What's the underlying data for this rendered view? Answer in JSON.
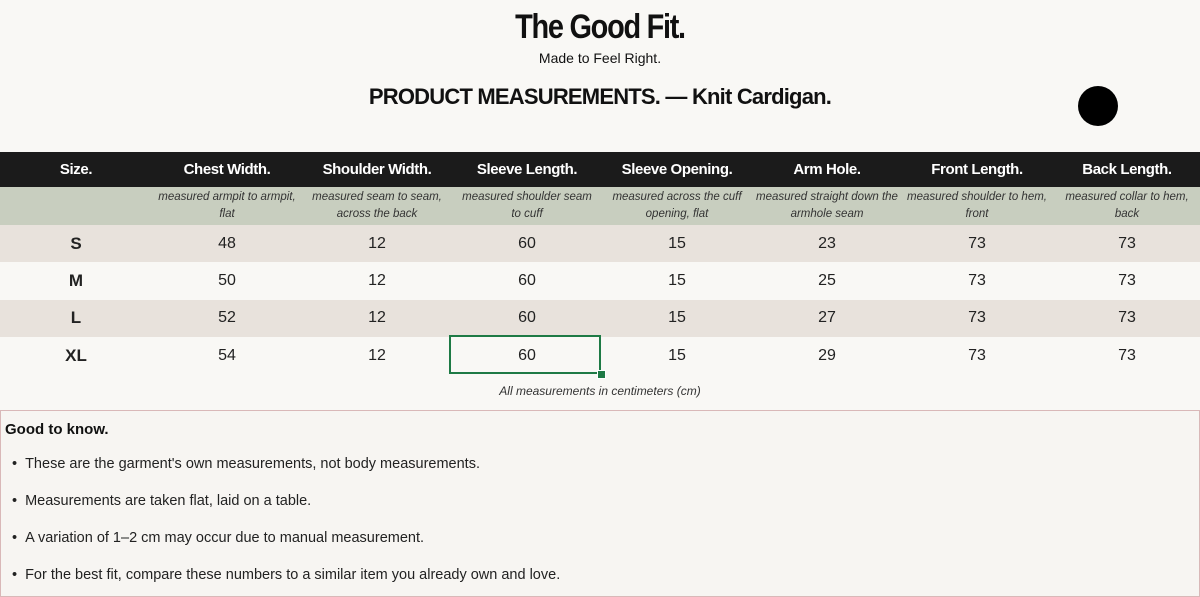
{
  "header": {
    "title": "The Good Fit.",
    "subtitle": "Made to Feel Right.",
    "heading": "PRODUCT MEASUREMENTS. — Knit Cardigan."
  },
  "table": {
    "columns": [
      {
        "title": "Size."
      },
      {
        "title": "Chest Width.",
        "description": "measured armpit to armpit, flat"
      },
      {
        "title": "Shoulder Width.",
        "description": "measured seam to seam, across the back"
      },
      {
        "title": "Sleeve Length.",
        "description": "measured shoulder seam to cuff"
      },
      {
        "title": "Sleeve Opening.",
        "description": "measured across the cuff opening, flat"
      },
      {
        "title": "Arm Hole.",
        "description": "measured straight down the armhole seam"
      },
      {
        "title": "Front Length.",
        "description": "measured shoulder to hem, front"
      },
      {
        "title": "Back Length.",
        "description": "measured collar to hem, back"
      }
    ],
    "rows": [
      [
        "S",
        48,
        12,
        60,
        15,
        23,
        73,
        73
      ],
      [
        "M",
        50,
        12,
        60,
        15,
        25,
        73,
        73
      ],
      [
        "L",
        52,
        12,
        60,
        15,
        27,
        73,
        73
      ],
      [
        "XL",
        54,
        12,
        60,
        15,
        29,
        73,
        73
      ]
    ],
    "note": "All measurements in centimeters (cm)"
  },
  "notes": {
    "title": "Good to know.",
    "items": [
      "These are the garment's own measurements, not body measurements.",
      "Measurements are taken flat, laid on a table.",
      "A variation of 1–2 cm may occur due to manual measurement.",
      "For the best fit, compare these numbers to a similar item you already own and love."
    ]
  }
}
